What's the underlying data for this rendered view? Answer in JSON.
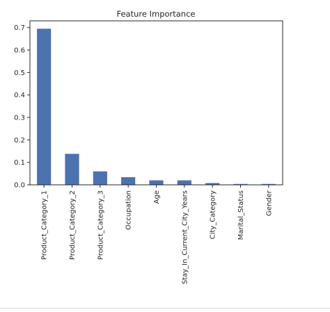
{
  "chart_data": {
    "type": "bar",
    "title": "Feature Importance",
    "xlabel": "",
    "ylabel": "",
    "categories": [
      "Product_Category_1",
      "Product_Category_2",
      "Product_Category_3",
      "Occupation",
      "Age",
      "Stay_In_Current_City_Years",
      "City_Category",
      "Marital_Status",
      "Gender"
    ],
    "values": [
      0.695,
      0.138,
      0.06,
      0.034,
      0.02,
      0.02,
      0.008,
      0.004,
      0.004
    ],
    "ylim": [
      0,
      0.73
    ],
    "yticks": [
      "0.0",
      "0.1",
      "0.2",
      "0.3",
      "0.4",
      "0.5",
      "0.6",
      "0.7"
    ],
    "grid": false,
    "legend": "none",
    "bar_color": "#4c72b0"
  }
}
